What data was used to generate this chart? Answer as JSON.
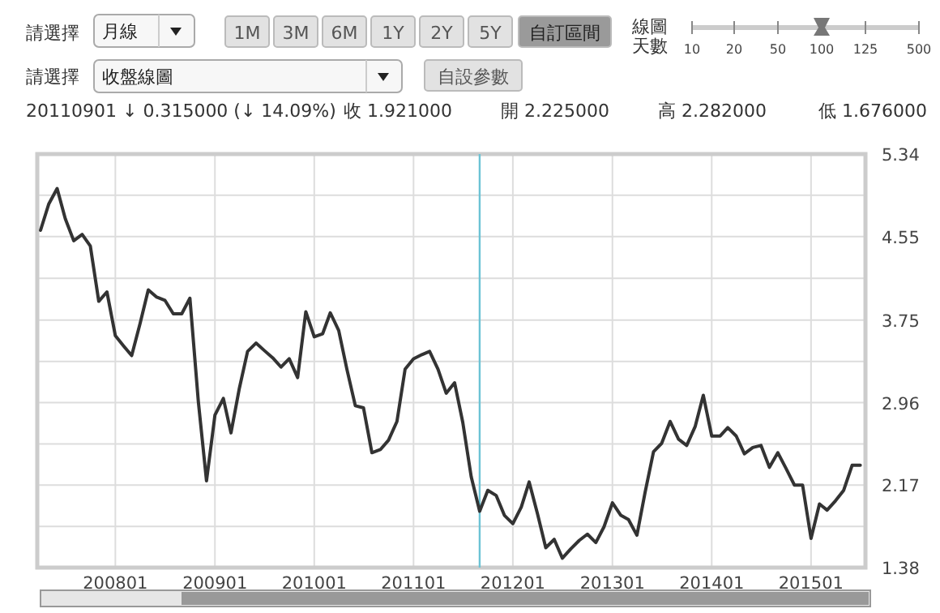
{
  "chart_data": {
    "type": "line",
    "x": [
      "2007-04",
      "2007-05",
      "2007-06",
      "2007-07",
      "2007-08",
      "2007-09",
      "2007-10",
      "2007-11",
      "2007-12",
      "2008-01",
      "2008-02",
      "2008-03",
      "2008-04",
      "2008-05",
      "2008-06",
      "2008-07",
      "2008-08",
      "2008-09",
      "2008-10",
      "2008-11",
      "2008-12",
      "2009-01",
      "2009-02",
      "2009-03",
      "2009-04",
      "2009-05",
      "2009-06",
      "2009-07",
      "2009-08",
      "2009-09",
      "2009-10",
      "2009-11",
      "2009-12",
      "2010-01",
      "2010-02",
      "2010-03",
      "2010-04",
      "2010-05",
      "2010-06",
      "2010-07",
      "2010-08",
      "2010-09",
      "2010-10",
      "2010-11",
      "2010-12",
      "2011-01",
      "2011-02",
      "2011-03",
      "2011-04",
      "2011-05",
      "2011-06",
      "2011-07",
      "2011-08",
      "2011-09",
      "2011-10",
      "2011-11",
      "2011-12",
      "2012-01",
      "2012-02",
      "2012-03",
      "2012-04",
      "2012-05",
      "2012-06",
      "2012-07",
      "2012-08",
      "2012-09",
      "2012-10",
      "2012-11",
      "2012-12",
      "2013-01",
      "2013-02",
      "2013-03",
      "2013-04",
      "2013-05",
      "2013-06",
      "2013-07",
      "2013-08",
      "2013-09",
      "2013-10",
      "2013-11",
      "2013-12",
      "2014-01",
      "2014-02",
      "2014-03",
      "2014-04",
      "2014-05",
      "2014-06",
      "2014-07",
      "2014-08",
      "2014-09",
      "2014-10",
      "2014-11",
      "2014-12",
      "2015-01",
      "2015-02",
      "2015-03",
      "2015-04",
      "2015-05",
      "2015-06",
      "2015-07"
    ],
    "series": [
      {
        "color": "#333333",
        "values": [
          4.61,
          4.86,
          5.01,
          4.72,
          4.51,
          4.57,
          4.46,
          3.93,
          4.02,
          3.6,
          3.5,
          3.41,
          3.72,
          4.04,
          3.97,
          3.94,
          3.81,
          3.81,
          3.96,
          2.97,
          2.21,
          2.84,
          3.0,
          2.67,
          3.1,
          3.45,
          3.53,
          3.46,
          3.39,
          3.3,
          3.38,
          3.2,
          3.83,
          3.59,
          3.62,
          3.82,
          3.65,
          3.28,
          2.93,
          2.91,
          2.48,
          2.51,
          2.6,
          2.78,
          3.28,
          3.38,
          3.42,
          3.45,
          3.28,
          3.05,
          3.15,
          2.77,
          2.25,
          1.92,
          2.12,
          2.07,
          1.88,
          1.8,
          1.96,
          2.2,
          1.89,
          1.57,
          1.65,
          1.47,
          1.56,
          1.64,
          1.7,
          1.62,
          1.77,
          2.0,
          1.88,
          1.84,
          1.69,
          2.1,
          2.49,
          2.57,
          2.78,
          2.61,
          2.55,
          2.73,
          3.03,
          2.64,
          2.64,
          2.72,
          2.64,
          2.47,
          2.53,
          2.55,
          2.34,
          2.48,
          2.33,
          2.17,
          2.17,
          1.66,
          1.99,
          1.93,
          2.02,
          2.12,
          2.36,
          2.36
        ]
      }
    ],
    "xlim": [
      "2007-03-20",
      "2015-07-20"
    ],
    "xticks": [
      {
        "value": "2008-01",
        "label": "200801"
      },
      {
        "value": "2009-01",
        "label": "200901"
      },
      {
        "value": "2010-01",
        "label": "201001"
      },
      {
        "value": "2011-01",
        "label": "201101"
      },
      {
        "value": "2012-01",
        "label": "201201"
      },
      {
        "value": "2013-01",
        "label": "201301"
      },
      {
        "value": "2014-01",
        "label": "201401"
      },
      {
        "value": "2015-01",
        "label": "201501"
      }
    ],
    "ylim": [
      1.38,
      5.34
    ],
    "yticks": [
      1.38,
      {
        "value": 1.775,
        "label": null
      },
      2.17,
      {
        "value": 2.565,
        "label": null
      },
      2.96,
      {
        "value": 3.355,
        "label": null
      },
      3.75,
      {
        "value": 4.15,
        "label": null
      },
      4.55,
      {
        "value": 4.945,
        "label": null
      },
      5.34
    ],
    "grid": true,
    "ref_lines": [
      {
        "axis": "x",
        "value": "2011-09",
        "color": "#6cc3d5"
      }
    ],
    "annotations": [
      "請選擇",
      "月線",
      "1M",
      "3M",
      "6M",
      "1Y",
      "2Y",
      "5Y",
      "自訂區間",
      "線圖",
      "天數",
      "10",
      "20",
      "50",
      "100",
      "125",
      "500",
      "請選擇",
      "收盤線圖",
      "自設參數",
      "20110901 ↓ 0.315000 (↓ 14.09%)",
      "收 1.921000",
      "開 2.225000",
      "高 2.282000",
      "低 1.676000"
    ]
  }
}
